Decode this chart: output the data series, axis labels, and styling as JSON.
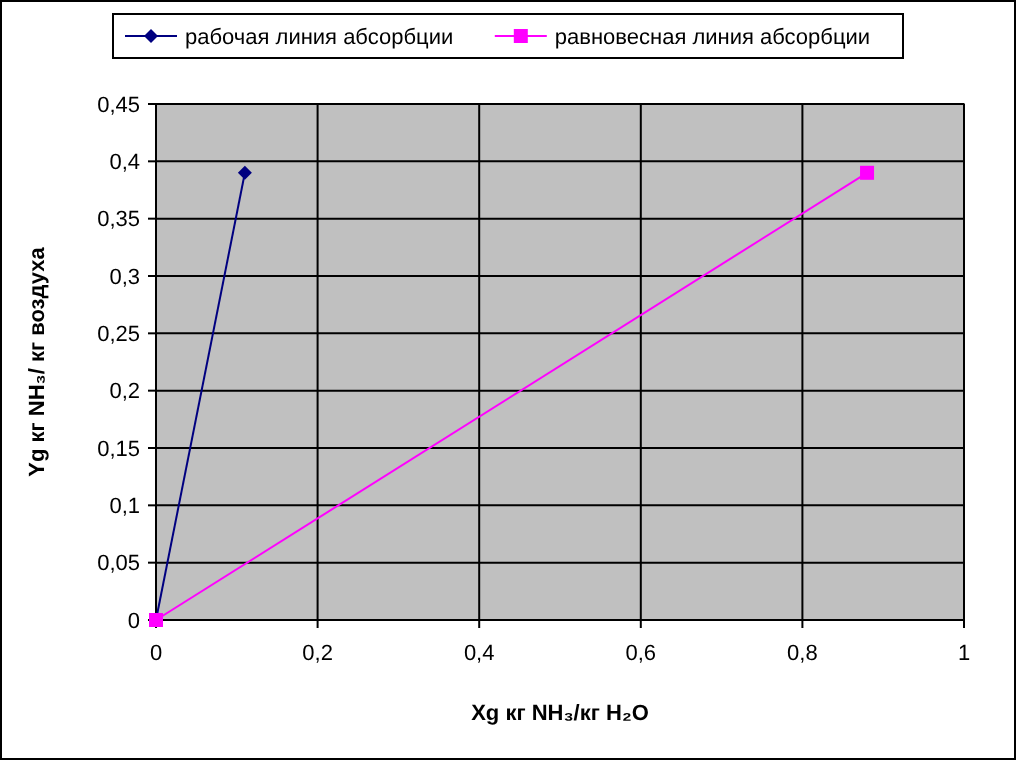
{
  "chart_data": {
    "type": "line",
    "xlabel": "Xg  кг NH₃/кг H₂O",
    "ylabel": "Yg кг NH₃/ кг воздуха",
    "xlim": [
      0,
      1
    ],
    "xticks": [
      {
        "value": 0,
        "label": "0"
      },
      {
        "value": 0.2,
        "label": "0,2"
      },
      {
        "value": 0.4,
        "label": "0,4"
      },
      {
        "value": 0.6,
        "label": "0,6"
      },
      {
        "value": 0.8,
        "label": "0,8"
      },
      {
        "value": 1,
        "label": "1"
      }
    ],
    "ylim": [
      0,
      0.45
    ],
    "yticks": [
      {
        "value": 0,
        "label": "0"
      },
      {
        "value": 0.05,
        "label": "0,05"
      },
      {
        "value": 0.1,
        "label": "0,1"
      },
      {
        "value": 0.15,
        "label": "0,15"
      },
      {
        "value": 0.2,
        "label": "0,2"
      },
      {
        "value": 0.25,
        "label": "0,25"
      },
      {
        "value": 0.3,
        "label": "0,3"
      },
      {
        "value": 0.35,
        "label": "0,35"
      },
      {
        "value": 0.4,
        "label": "0,4"
      },
      {
        "value": 0.45,
        "label": "0,45"
      }
    ],
    "grid": true,
    "legend": "top",
    "line_style": "solid",
    "series": [
      {
        "name": "рабочая линия абсорбции",
        "color": "#000080",
        "marker": "diamond",
        "x": [
          0,
          0.11
        ],
        "values": [
          0,
          0.39
        ]
      },
      {
        "name": "равновесная линия абсорбции",
        "color": "#ff00ff",
        "marker": "square",
        "x": [
          0,
          0.88
        ],
        "values": [
          0,
          0.39
        ]
      }
    ]
  }
}
